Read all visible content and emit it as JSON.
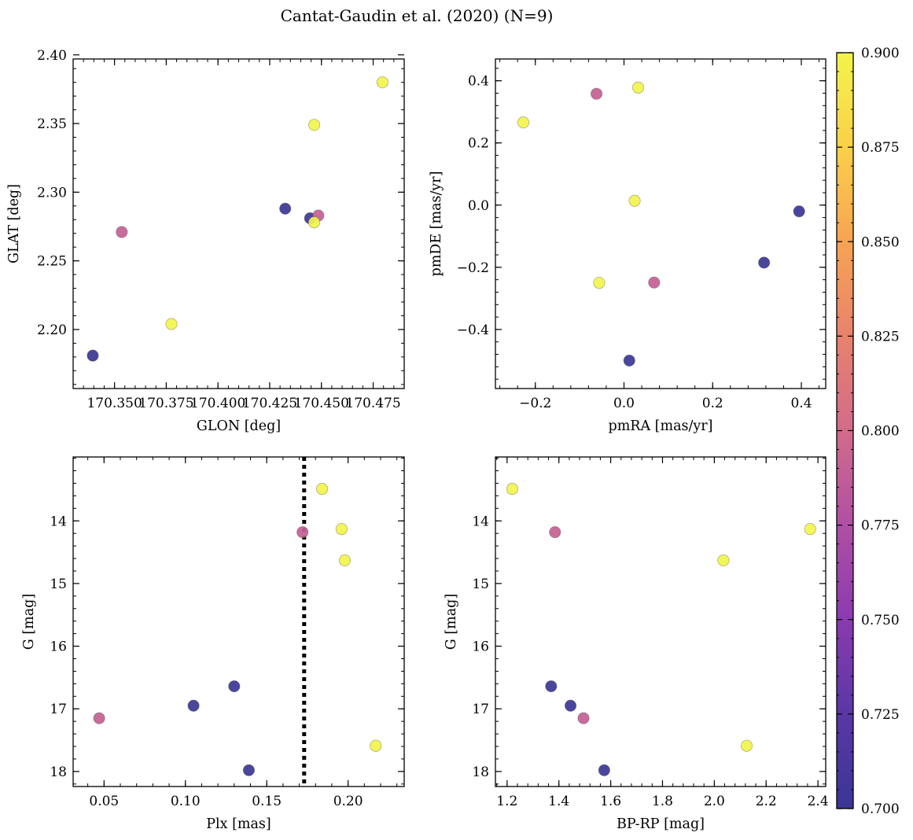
{
  "figure": {
    "title": "Cantat-Gaudin et al. (2020) (N=9)"
  },
  "chart_data": [
    {
      "id": "glon-glat",
      "type": "scatter",
      "xlabel": "GLON [deg]",
      "ylabel": "GLAT [deg]",
      "xlim": [
        170.33,
        170.49
      ],
      "ylim": [
        2.157,
        2.397
      ],
      "xticks": [
        170.35,
        170.375,
        170.4,
        170.425,
        170.45,
        170.475
      ],
      "xtick_labels": [
        "170.350",
        "170.375",
        "170.400",
        "170.425",
        "170.450",
        "170.475"
      ],
      "yticks": [
        2.2,
        2.25,
        2.3,
        2.35,
        2.4
      ],
      "ytick_labels": [
        "2.20",
        "2.25",
        "2.30",
        "2.35",
        "2.40"
      ],
      "yinverted": false,
      "points": [
        {
          "x": 170.3395,
          "y": 2.181,
          "c": 0.7
        },
        {
          "x": 170.3535,
          "y": 2.271,
          "c": 0.79
        },
        {
          "x": 170.3775,
          "y": 2.204,
          "c": 0.9
        },
        {
          "x": 170.4325,
          "y": 2.288,
          "c": 0.7
        },
        {
          "x": 170.4445,
          "y": 2.281,
          "c": 0.7
        },
        {
          "x": 170.4485,
          "y": 2.283,
          "c": 0.79
        },
        {
          "x": 170.4465,
          "y": 2.278,
          "c": 0.9
        },
        {
          "x": 170.4465,
          "y": 2.349,
          "c": 0.9
        },
        {
          "x": 170.4795,
          "y": 2.38,
          "c": 0.9
        }
      ]
    },
    {
      "id": "pmra-pmde",
      "type": "scatter",
      "xlabel": "pmRA [mas/yr]",
      "ylabel": "pmDE [mas/yr]",
      "xlim": [
        -0.29,
        0.455
      ],
      "ylim": [
        -0.59,
        0.47
      ],
      "xticks": [
        -0.2,
        0.0,
        0.2,
        0.4
      ],
      "xtick_labels": [
        "−0.2",
        "0.0",
        "0.2",
        "0.4"
      ],
      "yticks": [
        -0.4,
        -0.2,
        0.0,
        0.2,
        0.4
      ],
      "ytick_labels": [
        "−0.4",
        "−0.2",
        "0.0",
        "0.2",
        "0.4"
      ],
      "yinverted": false,
      "points": [
        {
          "x": -0.227,
          "y": 0.266,
          "c": 0.9
        },
        {
          "x": -0.062,
          "y": 0.358,
          "c": 0.79
        },
        {
          "x": 0.032,
          "y": 0.378,
          "c": 0.9
        },
        {
          "x": 0.024,
          "y": 0.014,
          "c": 0.9
        },
        {
          "x": -0.056,
          "y": -0.25,
          "c": 0.9
        },
        {
          "x": 0.068,
          "y": -0.249,
          "c": 0.79
        },
        {
          "x": 0.316,
          "y": -0.185,
          "c": 0.7
        },
        {
          "x": 0.395,
          "y": -0.02,
          "c": 0.7
        },
        {
          "x": 0.012,
          "y": -0.5,
          "c": 0.7
        }
      ]
    },
    {
      "id": "plx-g",
      "type": "scatter",
      "xlabel": "Plx [mas]",
      "ylabel": "G [mag]",
      "xlim": [
        0.031,
        0.2345
      ],
      "ylim": [
        12.98,
        18.24
      ],
      "xticks": [
        0.05,
        0.1,
        0.15,
        0.2
      ],
      "xtick_labels": [
        "0.05",
        "0.10",
        "0.15",
        "0.20"
      ],
      "yticks": [
        14,
        15,
        16,
        17,
        18
      ],
      "ytick_labels": [
        "14",
        "15",
        "16",
        "17",
        "18"
      ],
      "yinverted": true,
      "vline": {
        "x": 0.173,
        "style": "dotted"
      },
      "points": [
        {
          "x": 0.047,
          "y": 17.15,
          "c": 0.79
        },
        {
          "x": 0.105,
          "y": 16.95,
          "c": 0.7
        },
        {
          "x": 0.13,
          "y": 16.64,
          "c": 0.7
        },
        {
          "x": 0.139,
          "y": 17.98,
          "c": 0.7
        },
        {
          "x": 0.172,
          "y": 14.18,
          "c": 0.79
        },
        {
          "x": 0.184,
          "y": 13.49,
          "c": 0.9
        },
        {
          "x": 0.196,
          "y": 14.13,
          "c": 0.9
        },
        {
          "x": 0.198,
          "y": 14.63,
          "c": 0.9
        },
        {
          "x": 0.217,
          "y": 17.59,
          "c": 0.9
        }
      ]
    },
    {
      "id": "bprp-g",
      "type": "scatter",
      "xlabel": "BP-RP [mag]",
      "ylabel": "G [mag]",
      "xlim": [
        1.155,
        2.43
      ],
      "ylim": [
        12.98,
        18.24
      ],
      "xticks": [
        1.2,
        1.4,
        1.6,
        1.8,
        2.0,
        2.2,
        2.4
      ],
      "xtick_labels": [
        "1.2",
        "1.4",
        "1.6",
        "1.8",
        "2.0",
        "2.2",
        "2.4"
      ],
      "yticks": [
        14,
        15,
        16,
        17,
        18
      ],
      "ytick_labels": [
        "14",
        "15",
        "16",
        "17",
        "18"
      ],
      "yinverted": true,
      "points": [
        {
          "x": 1.22,
          "y": 13.49,
          "c": 0.9
        },
        {
          "x": 1.385,
          "y": 14.18,
          "c": 0.79
        },
        {
          "x": 1.37,
          "y": 16.64,
          "c": 0.7
        },
        {
          "x": 1.445,
          "y": 16.95,
          "c": 0.7
        },
        {
          "x": 1.495,
          "y": 17.15,
          "c": 0.79
        },
        {
          "x": 1.575,
          "y": 17.98,
          "c": 0.7
        },
        {
          "x": 2.035,
          "y": 14.63,
          "c": 0.9
        },
        {
          "x": 2.125,
          "y": 17.59,
          "c": 0.9
        },
        {
          "x": 2.37,
          "y": 14.13,
          "c": 0.9
        }
      ]
    }
  ],
  "colorbar": {
    "colormap": "plasma",
    "range": [
      0.7,
      0.9
    ],
    "ticks": [
      0.7,
      0.725,
      0.75,
      0.775,
      0.8,
      0.825,
      0.85,
      0.875,
      0.9
    ],
    "tick_labels": [
      "0.700",
      "0.725",
      "0.750",
      "0.775",
      "0.800",
      "0.825",
      "0.850",
      "0.875",
      "0.900"
    ],
    "stops": [
      "#3b3696",
      "#5a37a6",
      "#8a3bb0",
      "#b04fa4",
      "#d26b8a",
      "#e8826c",
      "#f7a453",
      "#fbd048",
      "#f2f44b"
    ]
  }
}
